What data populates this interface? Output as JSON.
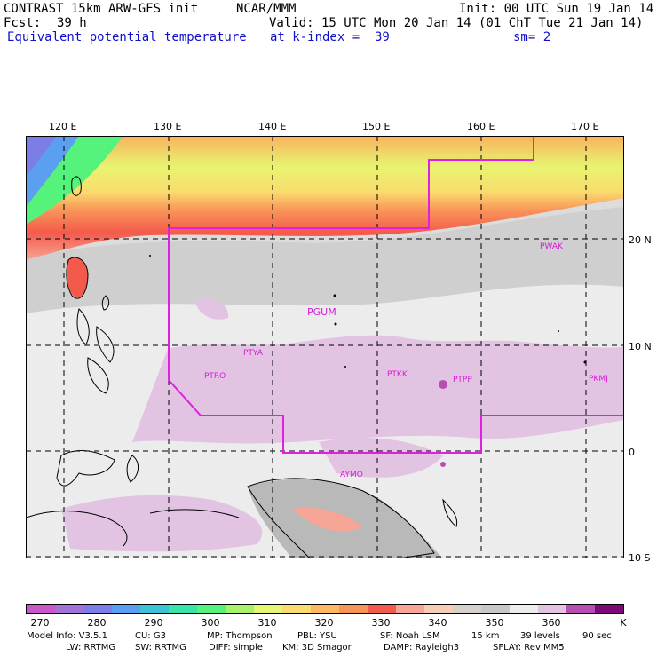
{
  "header": {
    "model_line": "CONTRAST 15km ARW-GFS init",
    "org": "NCAR/MMM",
    "init": "Init: 00 UTC Sun 19 Jan 14",
    "fcst_label": "Fcst:",
    "fcst_value": "39 h",
    "valid": "Valid: 15 UTC Mon 20 Jan 14 (01 ChT Tue 21 Jan 14)",
    "field_name": "Equivalent potential temperature",
    "level": "at k-index =  39",
    "smoothing": "sm= 2"
  },
  "map": {
    "lon_labels": [
      "120 E",
      "130 E",
      "140 E",
      "150 E",
      "160 E",
      "170 E"
    ],
    "lat_labels": [
      "20 N",
      "10 N",
      "0",
      "10 S"
    ],
    "stations": [
      "PGUM",
      "PWAK",
      "PTYA",
      "PTRO",
      "PTKK",
      "PTPP",
      "PKMJ",
      "AYMO"
    ]
  },
  "colorbar": {
    "colors": [
      "#c957c9",
      "#a272d6",
      "#7d7de8",
      "#5a9ff0",
      "#3cc4d6",
      "#35e6a8",
      "#55f27c",
      "#a6f26a",
      "#e8f571",
      "#fadc6e",
      "#fbb761",
      "#f99459",
      "#f45a4b",
      "#f7a596",
      "#f7cdb8",
      "#d8d1cb",
      "#c9c7c5",
      "#ededed",
      "#e2c4e2",
      "#b64fb2",
      "#7d0a78"
    ],
    "tick_labels": [
      "270",
      "280",
      "290",
      "300",
      "310",
      "320",
      "330",
      "340",
      "350",
      "360"
    ],
    "unit": "K"
  },
  "footer": {
    "line1": [
      "Model Info: V3.5.1",
      "CU: G3",
      "MP: Thompson",
      "PBL: YSU",
      "SF: Noah LSM",
      "15 km",
      "39 levels",
      "90 sec"
    ],
    "line2": [
      "LW: RRTMG",
      "SW: RRTMG",
      "DIFF: simple",
      "KM: 3D Smagor",
      "DAMP: Rayleigh3",
      "SFLAY: Rev MM5"
    ]
  }
}
